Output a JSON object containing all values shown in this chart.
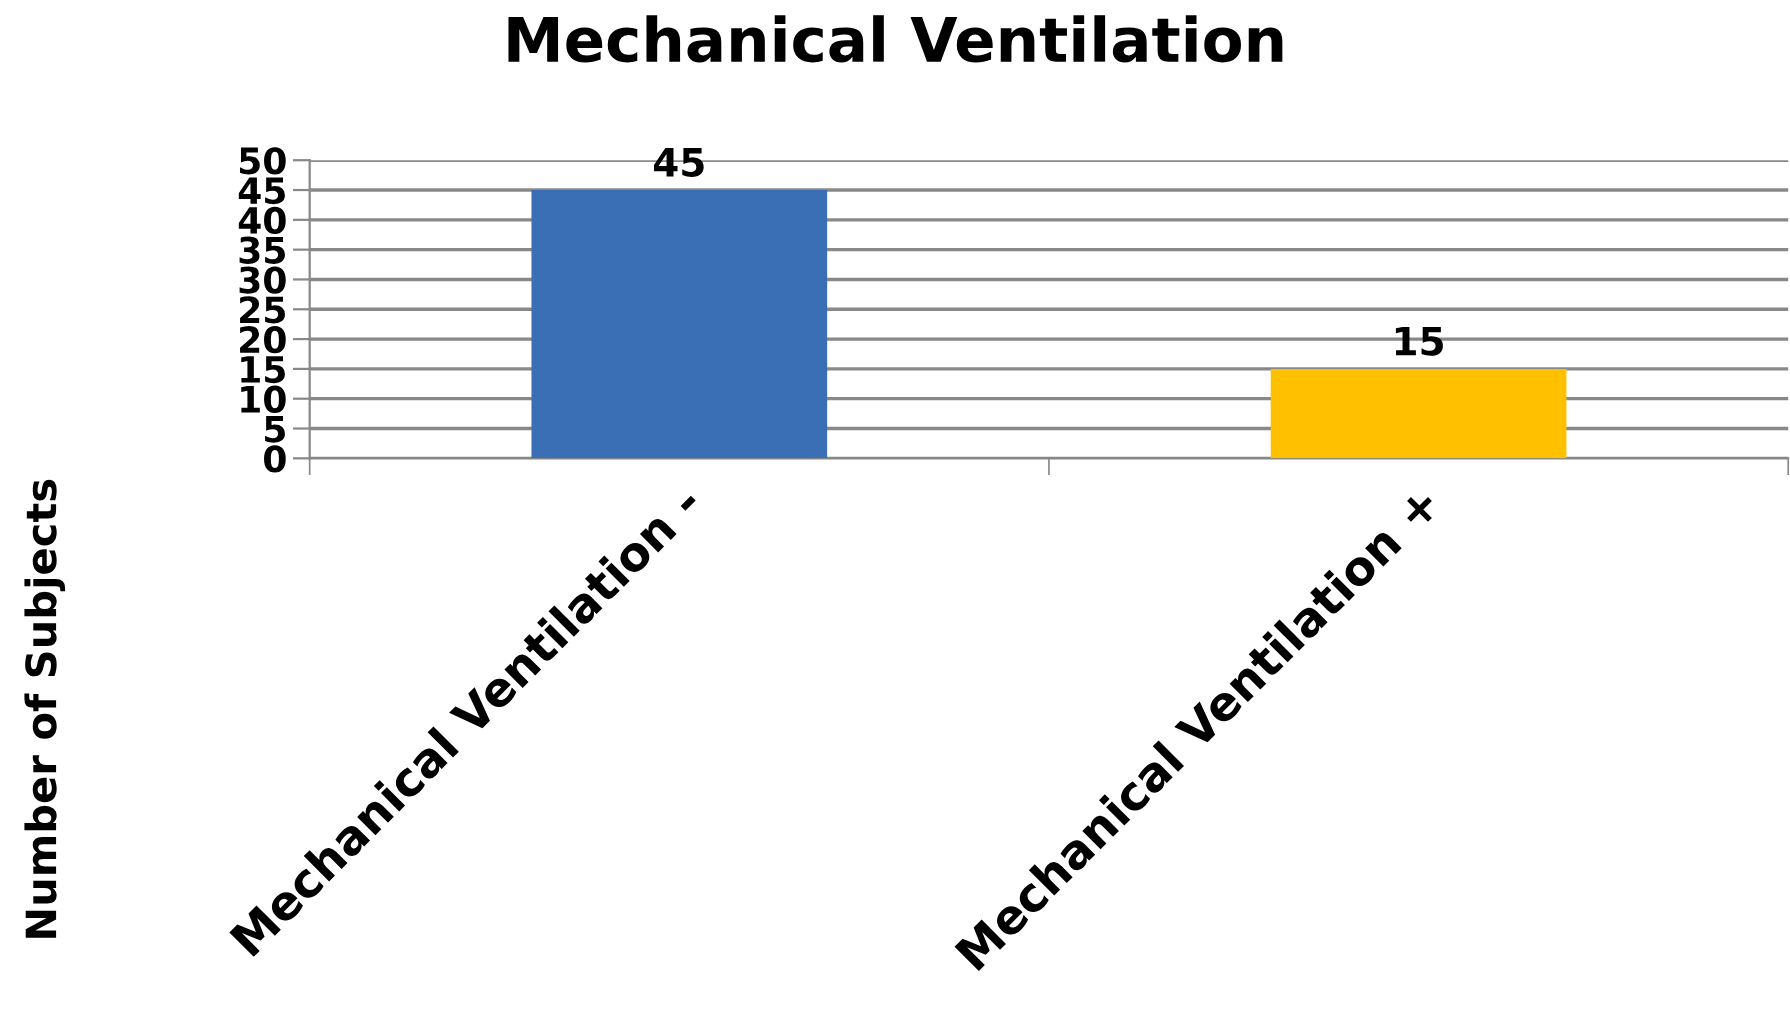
{
  "chart_data": {
    "type": "bar",
    "title": "Mechanical Ventilation",
    "ylabel": "Number of Subjects",
    "categories": [
      "Mechanical Ventilation -",
      "Mechanical Ventilation +"
    ],
    "values": [
      45,
      15
    ],
    "colors": [
      "#3a6fb5",
      "#ffc000"
    ],
    "ylim": [
      0,
      50
    ],
    "yticks": [
      0,
      5,
      10,
      15,
      20,
      25,
      30,
      35,
      40,
      45,
      50
    ],
    "grid": "y",
    "data_labels": true,
    "legend": false
  }
}
